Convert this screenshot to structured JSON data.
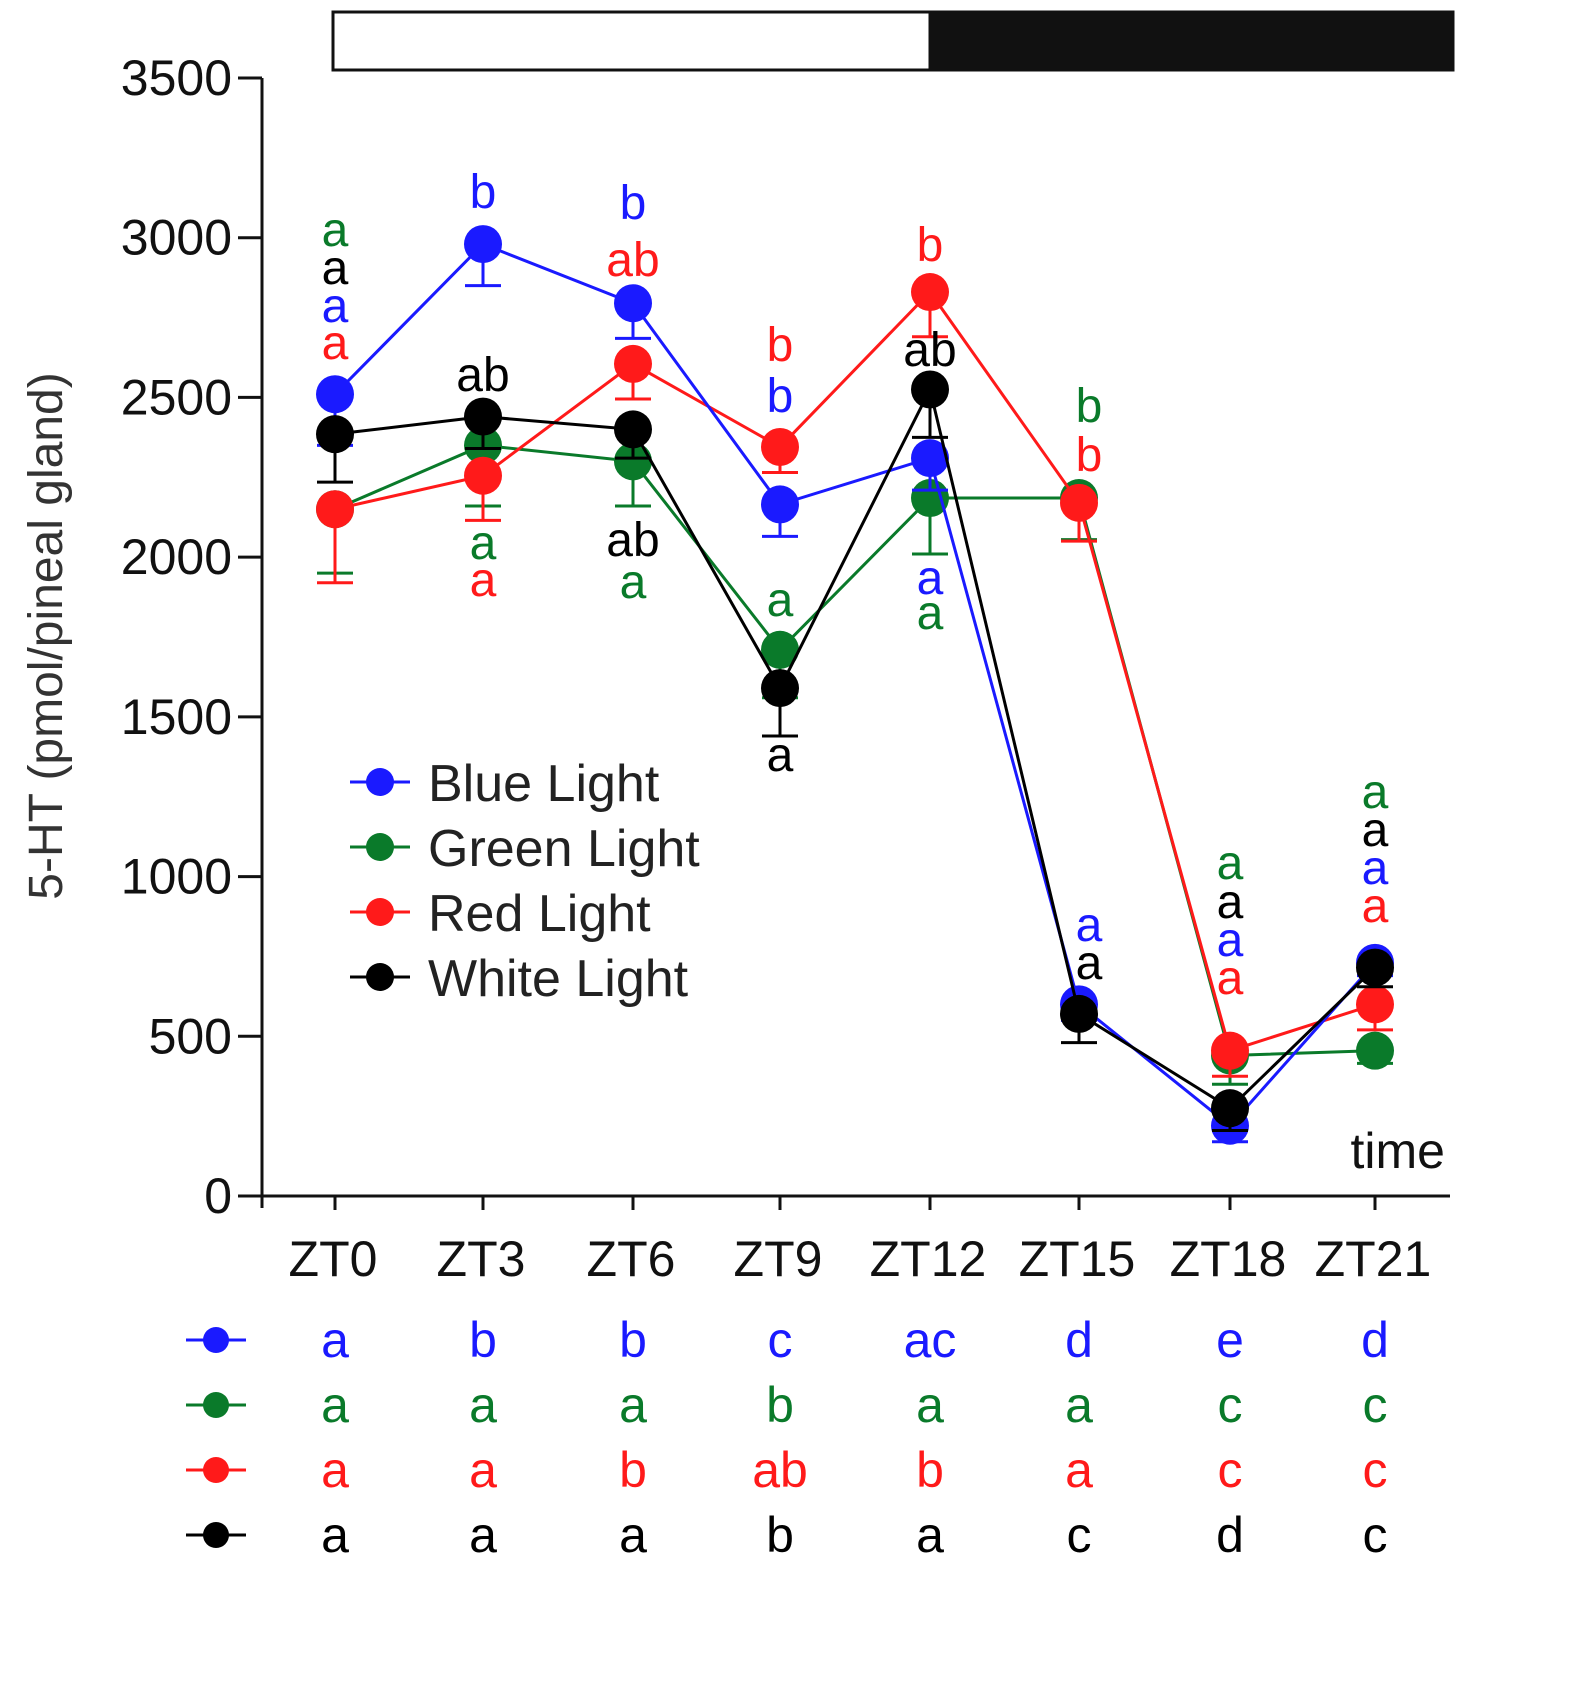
{
  "chart_data": {
    "type": "line",
    "ylabel": "5-HT (pmol/pineal gland)",
    "xlabel": "time",
    "ylim": [
      0,
      3500
    ],
    "yticks": [
      0,
      500,
      1000,
      1500,
      2000,
      2500,
      3000,
      3500
    ],
    "categories": [
      "ZT0",
      "ZT3",
      "ZT6",
      "ZT9",
      "ZT12",
      "ZT15",
      "ZT18",
      "ZT21"
    ],
    "light_dark_bar": {
      "light_until": "ZT12",
      "dark_from": "ZT12"
    },
    "legend_position": "center-left",
    "series": [
      {
        "name": "Blue Light",
        "color": "#1a1aff",
        "values": [
          2510,
          2980,
          2795,
          2165,
          2310,
          600,
          220,
          730
        ],
        "errors": [
          160,
          130,
          110,
          100,
          100,
          50,
          50,
          40
        ],
        "point_letters": [
          "a",
          "b",
          "b",
          "b",
          "a",
          "a",
          "a",
          "a"
        ],
        "table_letters": [
          "a",
          "b",
          "b",
          "c",
          "ac",
          "d",
          "e",
          "d"
        ]
      },
      {
        "name": "Green Light",
        "color": "#0a7a2a",
        "values": [
          2150,
          2350,
          2300,
          1710,
          2185,
          2185,
          440,
          455
        ],
        "errors": [
          200,
          190,
          140,
          150,
          175,
          130,
          90,
          40
        ],
        "point_letters": [
          "a",
          "a",
          "a",
          "a",
          "a",
          "b",
          "a",
          "a"
        ],
        "table_letters": [
          "a",
          "a",
          "a",
          "b",
          "a",
          "a",
          "c",
          "c"
        ]
      },
      {
        "name": "Red Light",
        "color": "#ff1a1a",
        "values": [
          2150,
          2255,
          2605,
          2345,
          2830,
          2170,
          455,
          600
        ],
        "errors": [
          230,
          140,
          110,
          80,
          140,
          120,
          80,
          80
        ],
        "point_letters": [
          "a",
          "a",
          "ab",
          "b",
          "b",
          "b",
          "a",
          "a"
        ],
        "table_letters": [
          "a",
          "a",
          "b",
          "ab",
          "b",
          "a",
          "c",
          "c"
        ]
      },
      {
        "name": "White Light",
        "color": "#000000",
        "values": [
          2385,
          2440,
          2400,
          1590,
          2525,
          570,
          275,
          715
        ],
        "errors": [
          150,
          100,
          90,
          150,
          150,
          90,
          70,
          60
        ],
        "point_letters": [
          "a",
          "ab",
          "ab",
          "a",
          "ab",
          "a",
          "a",
          "a"
        ],
        "table_letters": [
          "a",
          "a",
          "a",
          "b",
          "a",
          "c",
          "d",
          "c"
        ]
      }
    ]
  }
}
